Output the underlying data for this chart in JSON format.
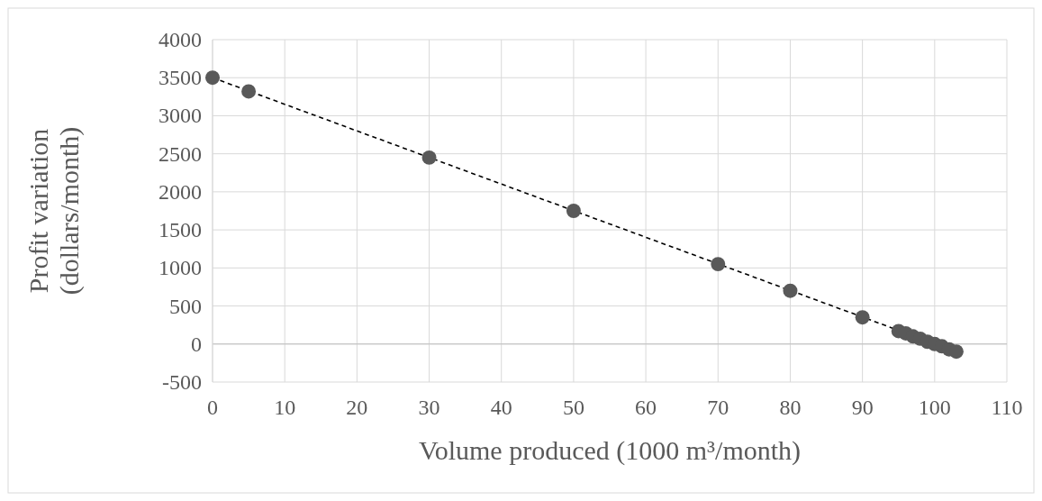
{
  "chart_data": {
    "type": "scatter",
    "xlabel": "Volume produced (1000 m³/month)",
    "ylabel": "Profit variation (dollars/month)",
    "xlim": [
      0,
      110
    ],
    "xticks": [
      0,
      10,
      20,
      30,
      40,
      50,
      60,
      70,
      80,
      90,
      100,
      110
    ],
    "ylim": [
      -500,
      4000
    ],
    "yticks": [
      -500,
      0,
      500,
      1000,
      1500,
      2000,
      2500,
      3000,
      3500,
      4000
    ],
    "grid": true,
    "series": [
      {
        "type": "line",
        "color": "#000000",
        "line_style": "dashed",
        "marker": "none",
        "x": [
          0,
          103
        ],
        "values": [
          3500,
          -100
        ]
      },
      {
        "color": "#595959",
        "marker": "circle",
        "x": [
          0,
          5,
          30,
          50,
          70,
          80,
          90,
          95,
          96,
          97,
          98,
          99,
          100,
          101,
          102,
          103
        ],
        "values": [
          3500,
          3320,
          2450,
          1750,
          1050,
          700,
          350,
          170,
          140,
          100,
          70,
          30,
          0,
          -30,
          -70,
          -100
        ]
      }
    ]
  }
}
